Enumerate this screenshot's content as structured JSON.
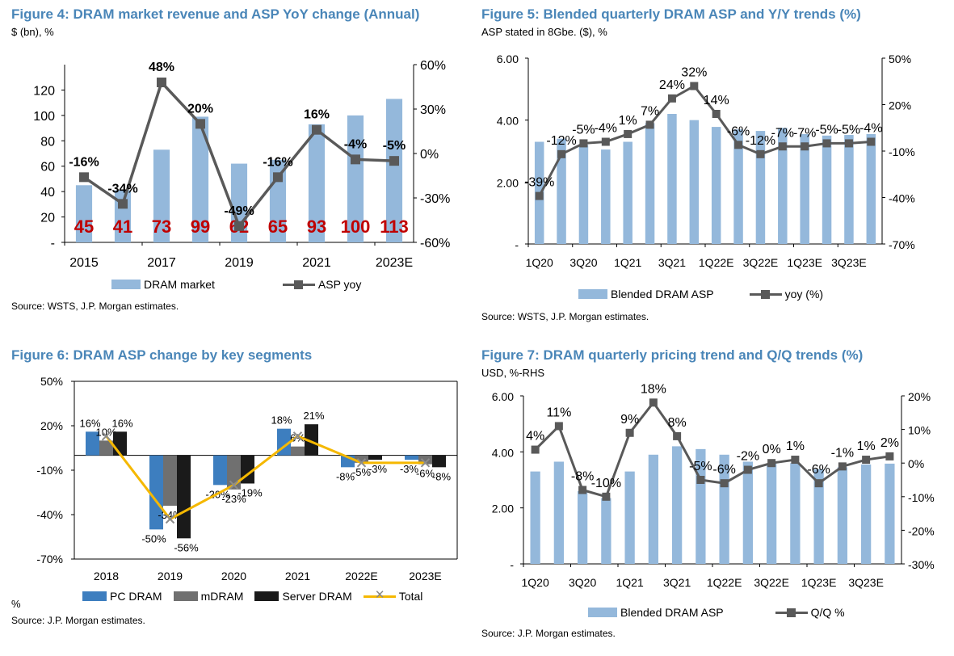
{
  "fig4": {
    "title": "Figure 4: DRAM market revenue and ASP YoY change (Annual)",
    "subtitle": "$ (bn), %",
    "source": "Source: WSTS, J.P. Morgan estimates.",
    "legend": [
      "DRAM market",
      "ASP yoy"
    ],
    "colors": {
      "bar": "#94b8db",
      "line": "#595959",
      "barlabel": "#c00000"
    }
  },
  "fig5": {
    "title": "Figure 5: Blended quarterly DRAM ASP and Y/Y trends (%)",
    "subtitle": "ASP stated in 8Gbe. ($), %",
    "source": "Source: WSTS, J.P. Morgan estimates.",
    "legend": [
      "Blended DRAM ASP",
      "yoy (%)"
    ],
    "colors": {
      "bar": "#94b8db",
      "line": "#595959"
    }
  },
  "fig6": {
    "title": "Figure 6: DRAM ASP change by key segments",
    "unit_note": "%",
    "source": "Source: J.P. Morgan estimates.",
    "legend": [
      "PC DRAM",
      "mDRAM",
      "Server DRAM",
      "Total"
    ],
    "colors": {
      "pc": "#3d7ebf",
      "m": "#707070",
      "server": "#1a1a1a",
      "total": "#f5b800",
      "marker": "#8c8c8c"
    }
  },
  "fig7": {
    "title": "Figure 7: DRAM quarterly pricing trend and Q/Q trends (%)",
    "subtitle": "USD, %-RHS",
    "source": "Source: J.P. Morgan estimates.",
    "legend": [
      "Blended DRAM ASP",
      "Q/Q %"
    ],
    "colors": {
      "bar": "#94b8db",
      "line": "#595959"
    }
  },
  "chart_data": [
    {
      "type": "bar",
      "categories": [
        "2015",
        "2016",
        "2017",
        "2018",
        "2019",
        "2020",
        "2021",
        "2022",
        "2023E"
      ],
      "x_tick_labels": [
        "2015",
        "2017",
        "2019",
        "2021",
        "2023E"
      ],
      "series": [
        {
          "name": "DRAM market",
          "values": [
            45,
            41,
            73,
            99,
            62,
            65,
            93,
            100,
            113
          ],
          "labels": [
            "45",
            "41",
            "73",
            "99",
            "62",
            "65",
            "93",
            "100",
            "113"
          ]
        },
        {
          "name": "ASP yoy",
          "type": "line",
          "values": [
            -16,
            -34,
            48,
            20,
            -49,
            -16,
            16,
            -4,
            -5
          ],
          "labels": [
            "-16%",
            "-34%",
            "48%",
            "20%",
            "-49%",
            "-16%",
            "16%",
            "-4%",
            "-5%"
          ]
        }
      ],
      "y_left": {
        "ticks": [
          "-",
          "20",
          "40",
          "60",
          "80",
          "100",
          "120"
        ],
        "range": [
          0,
          140
        ]
      },
      "y_right": {
        "ticks": [
          "-60%",
          "-30%",
          "0%",
          "30%",
          "60%"
        ],
        "range": [
          -60,
          60
        ]
      }
    },
    {
      "type": "bar",
      "categories": [
        "1Q20",
        "2Q20",
        "3Q20",
        "4Q20",
        "1Q21",
        "2Q21",
        "3Q21",
        "4Q21",
        "1Q22E",
        "2Q22E",
        "3Q22E",
        "4Q22E",
        "1Q23E",
        "2Q23E",
        "3Q23E",
        "4Q23E"
      ],
      "x_tick_labels": [
        "1Q20",
        "3Q20",
        "1Q21",
        "3Q21",
        "1Q22E",
        "3Q22E",
        "1Q23E",
        "3Q23E"
      ],
      "series": [
        {
          "name": "Blended DRAM ASP",
          "values": [
            3.3,
            3.4,
            3.2,
            3.05,
            3.3,
            3.9,
            4.2,
            4.0,
            3.78,
            3.7,
            3.65,
            3.75,
            3.55,
            3.5,
            3.52,
            3.55
          ]
        },
        {
          "name": "yoy (%)",
          "type": "line",
          "values": [
            -39,
            -12,
            -5,
            -4,
            1,
            7,
            24,
            32,
            14,
            -6,
            -12,
            -7,
            -7,
            -5,
            -5,
            -4
          ],
          "labels": [
            "-39%",
            "-12%",
            "-5%",
            "-4%",
            "1%",
            "7%",
            "24%",
            "32%",
            "14%",
            "-6%",
            "-12%",
            "-7%",
            "-7%",
            "-5%",
            "-5%",
            "-4%"
          ]
        }
      ],
      "y_left": {
        "ticks": [
          "-",
          "2.00",
          "4.00",
          "6.00"
        ],
        "range": [
          0,
          6
        ]
      },
      "y_right": {
        "ticks": [
          "-70%",
          "-40%",
          "-10%",
          "20%",
          "50%"
        ],
        "range": [
          -70,
          50
        ]
      }
    },
    {
      "type": "bar",
      "categories": [
        "2018",
        "2019",
        "2020",
        "2021",
        "2022E",
        "2023E"
      ],
      "series": [
        {
          "name": "PC DRAM",
          "values": [
            16,
            -50,
            -20,
            18,
            -8,
            -3
          ],
          "labels": [
            "16%",
            "-50%",
            "-20%",
            "18%",
            "-8%",
            "-3%"
          ]
        },
        {
          "name": "mDRAM",
          "values": [
            10,
            -34,
            -23,
            6,
            -5,
            -6
          ],
          "labels": [
            "10%",
            "-34%",
            "-23%",
            "6%",
            "-5%",
            "-6%"
          ]
        },
        {
          "name": "Server DRAM",
          "values": [
            16,
            -56,
            -19,
            21,
            -3,
            -8
          ],
          "labels": [
            "16%",
            "-56%",
            "-19%",
            "21%",
            "-3%",
            "-8%"
          ]
        },
        {
          "name": "Total",
          "type": "line",
          "values": [
            13,
            -43,
            -20,
            13,
            -5,
            -5
          ]
        }
      ],
      "y_axis": {
        "ticks": [
          "-70%",
          "-40%",
          "-10%",
          "20%",
          "50%"
        ],
        "range": [
          -70,
          50
        ]
      }
    },
    {
      "type": "bar",
      "categories": [
        "1Q20",
        "2Q20",
        "3Q20",
        "4Q20",
        "1Q21",
        "2Q21",
        "3Q21",
        "4Q21",
        "1Q22E",
        "2Q22E",
        "3Q22E",
        "4Q22E",
        "1Q23E",
        "2Q23E",
        "3Q23E",
        "4Q23E"
      ],
      "x_tick_labels": [
        "1Q20",
        "3Q20",
        "1Q21",
        "3Q21",
        "1Q22E",
        "3Q22E",
        "1Q23E",
        "3Q23E"
      ],
      "series": [
        {
          "name": "Blended DRAM ASP",
          "values": [
            3.3,
            3.65,
            2.6,
            2.35,
            3.3,
            3.9,
            4.2,
            4.1,
            3.9,
            3.65,
            3.58,
            3.6,
            3.38,
            3.45,
            3.55,
            3.58
          ]
        },
        {
          "name": "Q/Q %",
          "type": "line",
          "values": [
            4,
            11,
            -8,
            -10,
            9,
            18,
            8,
            -5,
            -6,
            -2,
            0,
            1,
            -6,
            -1,
            1,
            2
          ],
          "labels": [
            "4%",
            "11%",
            "-8%",
            "-10%",
            "9%",
            "18%",
            "8%",
            "-5%",
            "-6%",
            "-2%",
            "0%",
            "1%",
            "-6%",
            "-1%",
            "1%",
            "2%"
          ]
        }
      ],
      "y_left": {
        "ticks": [
          "-",
          "2.00",
          "4.00",
          "6.00"
        ],
        "range": [
          0,
          6
        ]
      },
      "y_right": {
        "ticks": [
          "-30%",
          "-20%",
          "-10%",
          "0%",
          "10%",
          "20%"
        ],
        "range": [
          -30,
          20
        ]
      }
    }
  ]
}
